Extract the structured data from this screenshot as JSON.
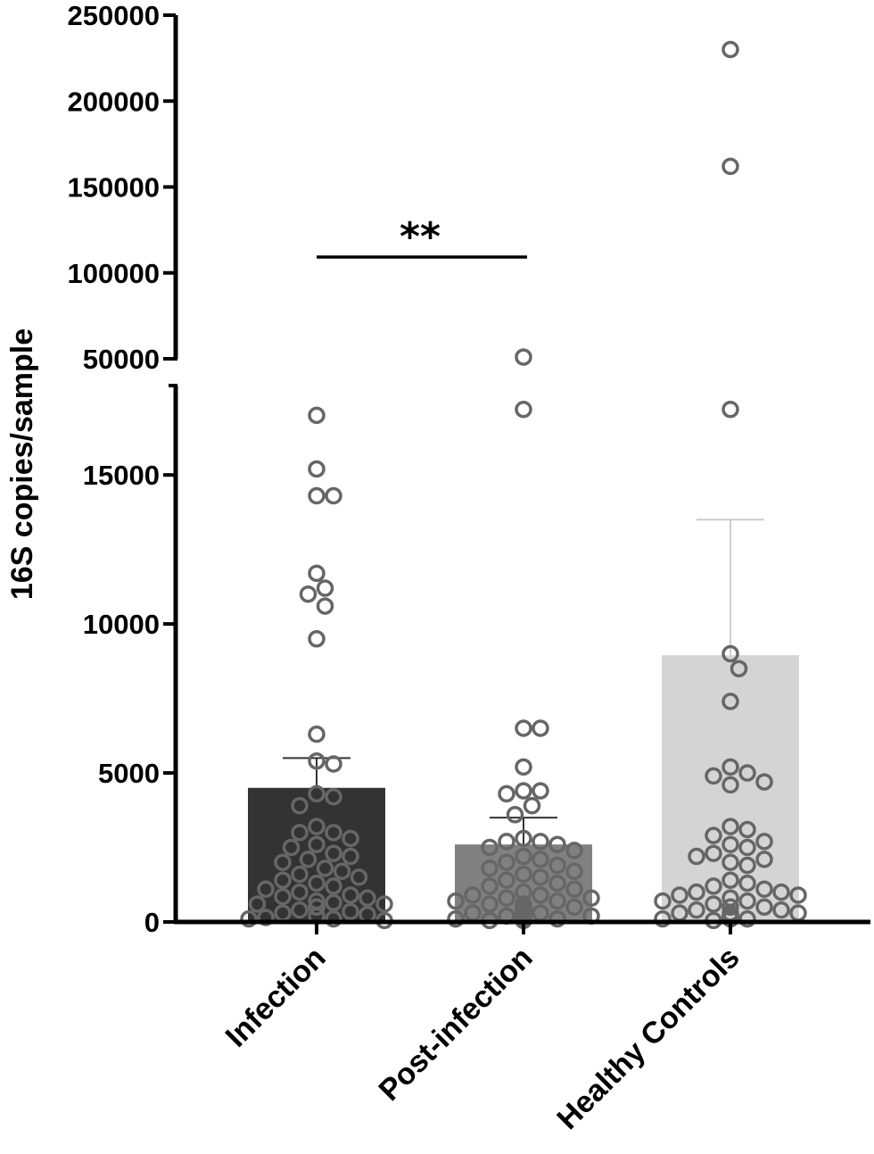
{
  "chart_data": {
    "type": "bar",
    "ylabel": "16S copies/sample",
    "categories": [
      "Infection",
      "Post-infection",
      "Healthy Controls"
    ],
    "colors": [
      "#333333",
      "#808080",
      "#d4d4d4"
    ],
    "point_color": "#666666",
    "y_axis": {
      "broken": true,
      "lower_segment": {
        "range": [
          0,
          18000
        ],
        "ticks": [
          0,
          5000,
          10000,
          15000
        ],
        "tick_labels": [
          "0",
          "5000",
          "10000",
          "15000"
        ]
      },
      "upper_segment": {
        "range": [
          50000,
          250000
        ],
        "ticks": [
          50000,
          100000,
          150000,
          200000,
          250000
        ],
        "tick_labels": [
          "50000",
          "100000",
          "150000",
          "200000",
          "250000"
        ]
      }
    },
    "series": [
      {
        "category": "Infection",
        "mean": 4500,
        "sem_upper": 5500,
        "points": [
          17000,
          15200,
          14300,
          14300,
          11700,
          11200,
          11000,
          10600,
          9500,
          6300,
          5400,
          5300,
          4300,
          4200,
          3900,
          3200,
          3000,
          3000,
          2800,
          2600,
          2500,
          2300,
          2200,
          2100,
          2000,
          1800,
          1700,
          1600,
          1500,
          1400,
          1300,
          1200,
          1100,
          1000,
          900,
          850,
          800,
          700,
          650,
          600,
          600,
          500,
          500,
          400,
          350,
          300,
          250,
          200,
          150,
          100,
          100,
          50
        ]
      },
      {
        "category": "Post-infection",
        "mean": 2600,
        "sem_upper": 3500,
        "points": [
          51000,
          17200,
          6500,
          6500,
          5200,
          4400,
          4400,
          4300,
          3900,
          3600,
          2800,
          2700,
          2700,
          2600,
          2500,
          2400,
          2200,
          2100,
          2000,
          1900,
          1800,
          1700,
          1600,
          1500,
          1400,
          1300,
          1200,
          1100,
          1000,
          900,
          900,
          800,
          800,
          700,
          700,
          600,
          600,
          500,
          500,
          400,
          400,
          300,
          300,
          300,
          200,
          200,
          200,
          100,
          100,
          100,
          50,
          50
        ]
      },
      {
        "category": "Healthy Controls",
        "mean": 8950,
        "sem_upper": 13500,
        "points": [
          230000,
          162000,
          17200,
          9000,
          8500,
          7400,
          5200,
          5000,
          4900,
          4700,
          4600,
          3200,
          3100,
          2900,
          2700,
          2600,
          2500,
          2300,
          2200,
          2100,
          2000,
          1900,
          1400,
          1300,
          1200,
          1100,
          1000,
          1000,
          900,
          900,
          800,
          700,
          700,
          600,
          500,
          500,
          400,
          400,
          300,
          300,
          300,
          200,
          200,
          200,
          100,
          100,
          100,
          50
        ]
      }
    ],
    "significance": {
      "between": [
        "Infection",
        "Post-infection"
      ],
      "label": "**"
    }
  }
}
